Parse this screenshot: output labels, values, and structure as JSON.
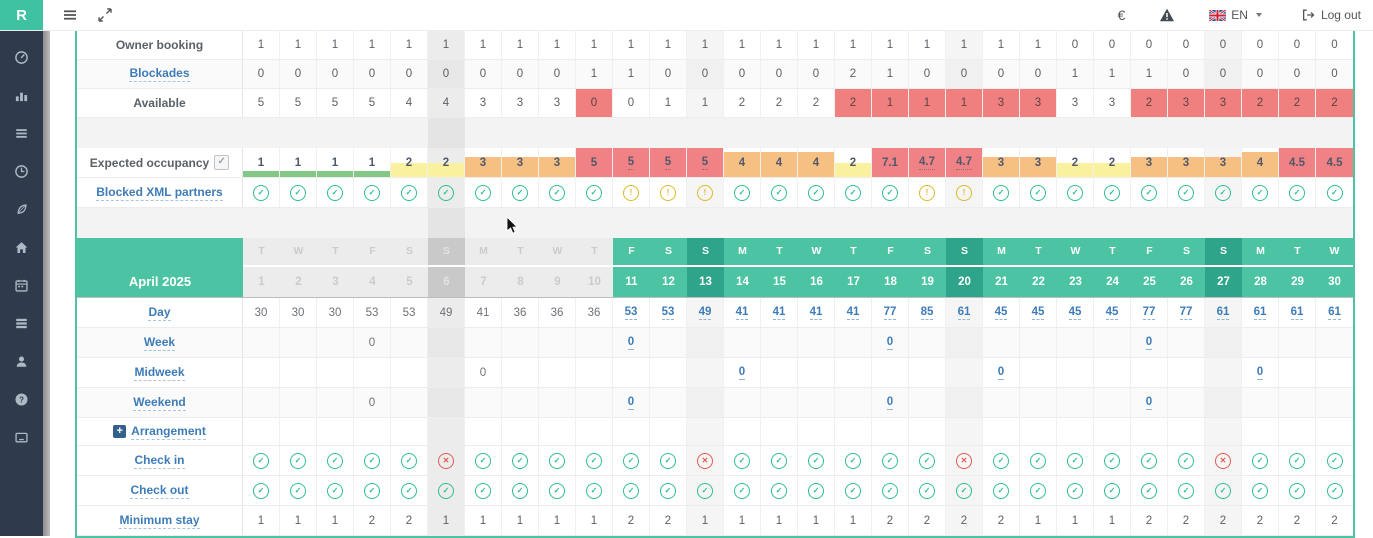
{
  "topbar": {
    "logo": "R",
    "currency": "€",
    "language": "EN",
    "logout_label": "Log out",
    "icons": [
      "menu-icon",
      "expand-icon",
      "euro-icon",
      "warning-icon",
      "flag-en-icon",
      "chevron-down-icon",
      "logout-icon"
    ]
  },
  "sidebar": {
    "items": [
      {
        "icon": "dashboard-icon"
      },
      {
        "icon": "stats-icon"
      },
      {
        "icon": "list-icon"
      },
      {
        "icon": "clock-icon"
      },
      {
        "icon": "leaf-icon"
      },
      {
        "icon": "home-icon"
      },
      {
        "icon": "calendar-icon"
      },
      {
        "icon": "rows-icon"
      },
      {
        "icon": "user-icon"
      },
      {
        "icon": "help-icon"
      },
      {
        "icon": "terminal-icon"
      }
    ]
  },
  "table": {
    "month": "April 2025",
    "days": [
      {
        "l": "T",
        "d": "1",
        "past": true
      },
      {
        "l": "W",
        "d": "2",
        "past": true
      },
      {
        "l": "T",
        "d": "3",
        "past": true
      },
      {
        "l": "F",
        "d": "4",
        "past": true
      },
      {
        "l": "S",
        "d": "5",
        "past": true
      },
      {
        "l": "S",
        "d": "6",
        "past": true,
        "sun": true
      },
      {
        "l": "M",
        "d": "7",
        "past": true
      },
      {
        "l": "T",
        "d": "8",
        "past": true
      },
      {
        "l": "W",
        "d": "9",
        "past": true
      },
      {
        "l": "T",
        "d": "10",
        "past": true
      },
      {
        "l": "F",
        "d": "11"
      },
      {
        "l": "S",
        "d": "12"
      },
      {
        "l": "S",
        "d": "13",
        "sun": true
      },
      {
        "l": "M",
        "d": "14"
      },
      {
        "l": "T",
        "d": "15"
      },
      {
        "l": "W",
        "d": "16"
      },
      {
        "l": "T",
        "d": "17"
      },
      {
        "l": "F",
        "d": "18"
      },
      {
        "l": "S",
        "d": "19"
      },
      {
        "l": "S",
        "d": "20",
        "sun": true
      },
      {
        "l": "M",
        "d": "21"
      },
      {
        "l": "T",
        "d": "22"
      },
      {
        "l": "W",
        "d": "23"
      },
      {
        "l": "T",
        "d": "24"
      },
      {
        "l": "F",
        "d": "25"
      },
      {
        "l": "S",
        "d": "26"
      },
      {
        "l": "S",
        "d": "27",
        "sun": true
      },
      {
        "l": "M",
        "d": "28"
      },
      {
        "l": "T",
        "d": "29"
      },
      {
        "l": "W",
        "d": "30"
      }
    ],
    "rows": [
      {
        "id": "owner_booking",
        "label": "Owner booking",
        "kind": "number",
        "link": false,
        "cells": [
          "1",
          "1",
          "1",
          "1",
          "1",
          "1",
          "1",
          "1",
          "1",
          "1",
          "1",
          "1",
          "1",
          "1",
          "1",
          "1",
          "1",
          "1",
          "1",
          "1",
          "1",
          "1",
          "0",
          "0",
          "0",
          "0",
          "0",
          "0",
          "0",
          "0"
        ]
      },
      {
        "id": "blockades",
        "label": "Blockades",
        "kind": "number",
        "link": true,
        "alt": true,
        "cells": [
          "0",
          "0",
          "0",
          "0",
          "0",
          "0",
          "0",
          "0",
          "0",
          "1",
          "1",
          "0",
          "0",
          "0",
          "0",
          "0",
          "2",
          "1",
          "0",
          "0",
          "0",
          "0",
          "1",
          "1",
          "1",
          "0",
          "0",
          "0",
          "0",
          "0"
        ]
      },
      {
        "id": "available",
        "label": "Available",
        "kind": "number",
        "link": false,
        "cells": [
          "5",
          "5",
          "5",
          "5",
          "4",
          "4",
          "3",
          "3",
          "3",
          "0",
          "0",
          "1",
          "1",
          "2",
          "2",
          "2",
          "2",
          "1",
          "1",
          "1",
          "3",
          "3",
          "3",
          "3",
          "2",
          "3",
          "3",
          "2",
          "2",
          "2"
        ],
        "red": [
          9,
          16,
          17,
          18,
          19,
          20,
          21,
          24,
          25,
          26,
          27,
          28,
          29
        ]
      },
      {
        "id": "spacer1",
        "kind": "spacer"
      },
      {
        "id": "expected_occupancy",
        "label": "Expected occupancy",
        "kind": "occupancy",
        "link": false,
        "checkbox": true,
        "cells": [
          {
            "v": "1",
            "c": "green",
            "f": 20
          },
          {
            "v": "1",
            "c": "green",
            "f": 20
          },
          {
            "v": "1",
            "c": "green",
            "f": 20
          },
          {
            "v": "1",
            "c": "green",
            "f": 20
          },
          {
            "v": "2",
            "c": "yellow",
            "f": 50
          },
          {
            "v": "2",
            "c": "yellow",
            "f": 50
          },
          {
            "v": "3",
            "c": "orange",
            "f": 68
          },
          {
            "v": "3",
            "c": "orange",
            "f": 68
          },
          {
            "v": "3",
            "c": "orange",
            "f": 68
          },
          {
            "v": "5",
            "c": "red",
            "f": 100
          },
          {
            "v": "5",
            "c": "red",
            "f": 100,
            "dot": true
          },
          {
            "v": "5",
            "c": "red",
            "f": 100,
            "dot": true
          },
          {
            "v": "5",
            "c": "red",
            "f": 100,
            "dot": true
          },
          {
            "v": "4",
            "c": "orange",
            "f": 85
          },
          {
            "v": "4",
            "c": "orange",
            "f": 85
          },
          {
            "v": "4",
            "c": "orange",
            "f": 85
          },
          {
            "v": "2",
            "c": "yellow",
            "f": 50
          },
          {
            "v": "7.1",
            "c": "red",
            "f": 100
          },
          {
            "v": "4.7",
            "c": "red",
            "f": 100,
            "dot": true
          },
          {
            "v": "4.7",
            "c": "red",
            "f": 100,
            "dot": true
          },
          {
            "v": "3",
            "c": "orange",
            "f": 68
          },
          {
            "v": "3",
            "c": "orange",
            "f": 68
          },
          {
            "v": "2",
            "c": "yellow",
            "f": 50
          },
          {
            "v": "2",
            "c": "yellow",
            "f": 50
          },
          {
            "v": "3",
            "c": "orange",
            "f": 68
          },
          {
            "v": "3",
            "c": "orange",
            "f": 68
          },
          {
            "v": "3",
            "c": "orange",
            "f": 68
          },
          {
            "v": "4",
            "c": "orange",
            "f": 85
          },
          {
            "v": "4.5",
            "c": "red",
            "f": 100
          },
          {
            "v": "4.5",
            "c": "red",
            "f": 100
          }
        ]
      },
      {
        "id": "blocked_xml",
        "label": "Blocked XML partners",
        "kind": "icons",
        "link": true,
        "cells": [
          "ok",
          "ok",
          "ok",
          "ok",
          "ok",
          "ok",
          "ok",
          "ok",
          "ok",
          "ok",
          "warn",
          "warn",
          "warn",
          "ok",
          "ok",
          "ok",
          "ok",
          "ok",
          "warn",
          "warn",
          "ok",
          "ok",
          "ok",
          "ok",
          "ok",
          "ok",
          "ok",
          "ok",
          "ok",
          "ok"
        ]
      },
      {
        "id": "spacer2",
        "kind": "spacer"
      },
      {
        "id": "header",
        "kind": "header"
      },
      {
        "id": "day",
        "label": "Day",
        "kind": "rate",
        "link": true,
        "cells": [
          "30",
          "30",
          "30",
          "53",
          "53",
          "49",
          "41",
          "36",
          "36",
          "36",
          "53",
          "53",
          "49",
          "41",
          "41",
          "41",
          "41",
          "77",
          "85",
          "61",
          "45",
          "45",
          "45",
          "45",
          "77",
          "77",
          "61",
          "61",
          "61",
          "61"
        ]
      },
      {
        "id": "week",
        "label": "Week",
        "kind": "rate",
        "link": true,
        "alt": true,
        "cells": [
          "",
          "",
          "",
          "0",
          "",
          "",
          "",
          "",
          "",
          "",
          "0",
          "",
          "",
          "",
          "",
          "",
          "",
          "0",
          "",
          "",
          "",
          "",
          "",
          "",
          "0",
          "",
          "",
          "",
          "",
          ""
        ]
      },
      {
        "id": "midweek",
        "label": "Midweek",
        "kind": "rate",
        "link": true,
        "cells": [
          "",
          "",
          "",
          "",
          "",
          "",
          "0",
          "",
          "",
          "",
          "",
          "",
          "",
          "0",
          "",
          "",
          "",
          "",
          "",
          "",
          "0",
          "",
          "",
          "",
          "",
          "",
          "",
          "0",
          "",
          ""
        ]
      },
      {
        "id": "weekend",
        "label": "Weekend",
        "kind": "rate",
        "link": true,
        "alt": true,
        "cells": [
          "",
          "",
          "",
          "0",
          "",
          "",
          "",
          "",
          "",
          "",
          "0",
          "",
          "",
          "",
          "",
          "",
          "",
          "0",
          "",
          "",
          "",
          "",
          "",
          "",
          "0",
          "",
          "",
          "",
          "",
          ""
        ]
      },
      {
        "id": "arrangement",
        "label": "Arrangement",
        "kind": "empty",
        "link": true,
        "plus": true
      },
      {
        "id": "check_in",
        "label": "Check in",
        "kind": "icons",
        "link": true,
        "cells": [
          "ok",
          "ok",
          "ok",
          "ok",
          "ok",
          "no",
          "ok",
          "ok",
          "ok",
          "ok",
          "ok",
          "ok",
          "no",
          "ok",
          "ok",
          "ok",
          "ok",
          "ok",
          "ok",
          "no",
          "ok",
          "ok",
          "ok",
          "ok",
          "ok",
          "ok",
          "no",
          "ok",
          "ok",
          "ok"
        ]
      },
      {
        "id": "check_out",
        "label": "Check out",
        "kind": "icons",
        "link": true,
        "cells": [
          "ok",
          "ok",
          "ok",
          "ok",
          "ok",
          "ok",
          "ok",
          "ok",
          "ok",
          "ok",
          "ok",
          "ok",
          "ok",
          "ok",
          "ok",
          "ok",
          "ok",
          "ok",
          "ok",
          "ok",
          "ok",
          "ok",
          "ok",
          "ok",
          "ok",
          "ok",
          "ok",
          "ok",
          "ok",
          "ok"
        ]
      },
      {
        "id": "minimum_stay",
        "label": "Minimum stay",
        "kind": "number",
        "link": true,
        "cells": [
          "1",
          "1",
          "1",
          "2",
          "2",
          "1",
          "1",
          "1",
          "1",
          "1",
          "2",
          "2",
          "1",
          "1",
          "1",
          "1",
          "1",
          "2",
          "2",
          "2",
          "2",
          "1",
          "1",
          "1",
          "2",
          "2",
          "2",
          "2",
          "2",
          "2"
        ]
      }
    ]
  }
}
